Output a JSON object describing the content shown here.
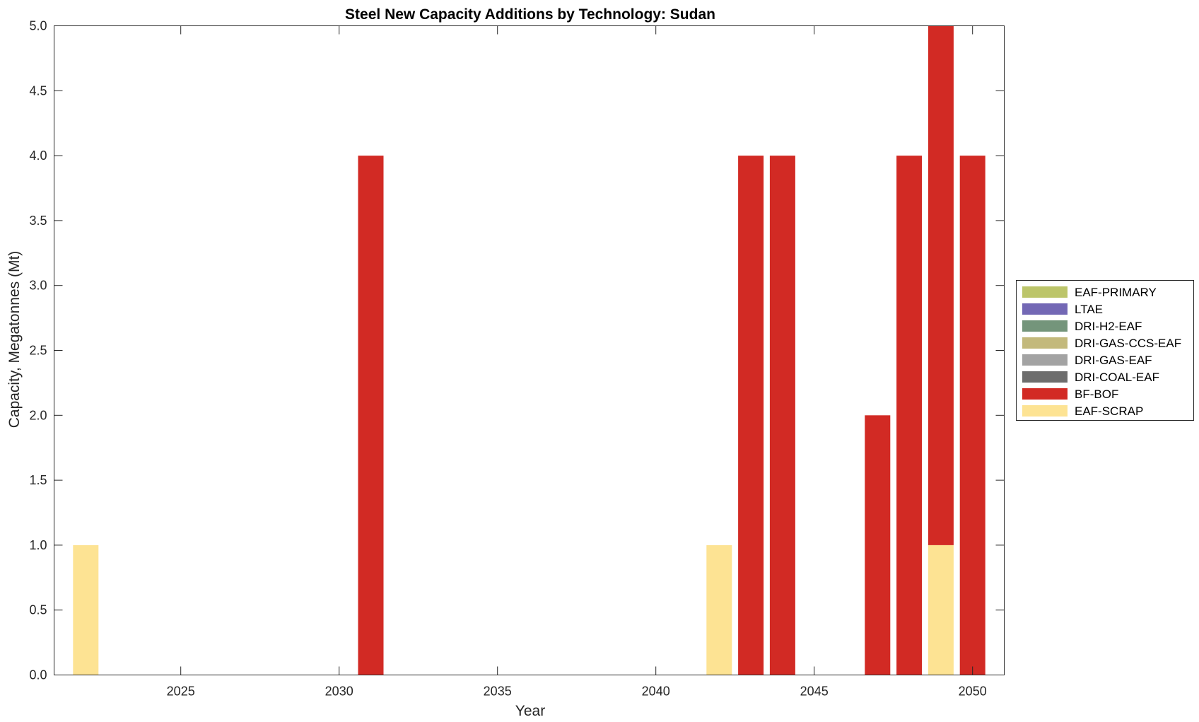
{
  "chart_data": {
    "type": "bar",
    "stacked": true,
    "title": "Steel New Capacity Additions by Technology: Sudan",
    "xlabel": "Year",
    "ylabel": "Capacity, Megatonnes (Mt)",
    "xlim": [
      2021,
      2051
    ],
    "ylim": [
      0,
      5
    ],
    "x_ticks": [
      2025,
      2030,
      2035,
      2040,
      2045,
      2050
    ],
    "y_ticks": [
      0.0,
      0.5,
      1.0,
      1.5,
      2.0,
      2.5,
      3.0,
      3.5,
      4.0,
      4.5,
      5.0
    ],
    "y_tick_labels": [
      "0.0",
      "0.5",
      "1.0",
      "1.5",
      "2.0",
      "2.5",
      "3.0",
      "3.5",
      "4.0",
      "4.5",
      "5.0"
    ],
    "grid": false,
    "legend_position": "right",
    "categories": [
      2022,
      2031,
      2042,
      2043,
      2044,
      2047,
      2048,
      2049,
      2050
    ],
    "series": [
      {
        "name": "EAF-SCRAP",
        "color": "#fde393",
        "values": [
          1,
          0,
          1,
          0,
          0,
          0,
          0,
          1,
          0
        ]
      },
      {
        "name": "BF-BOF",
        "color": "#d22a24",
        "values": [
          0,
          4,
          0,
          4,
          4,
          2,
          4,
          4,
          4
        ]
      },
      {
        "name": "DRI-COAL-EAF",
        "color": "#6d6d6d",
        "values": [
          0,
          0,
          0,
          0,
          0,
          0,
          0,
          0,
          0
        ]
      },
      {
        "name": "DRI-GAS-EAF",
        "color": "#a3a3a3",
        "values": [
          0,
          0,
          0,
          0,
          0,
          0,
          0,
          0,
          0
        ]
      },
      {
        "name": "DRI-GAS-CCS-EAF",
        "color": "#c3b97c",
        "values": [
          0,
          0,
          0,
          0,
          0,
          0,
          0,
          0,
          0
        ]
      },
      {
        "name": "DRI-H2-EAF",
        "color": "#74957b",
        "values": [
          0,
          0,
          0,
          0,
          0,
          0,
          0,
          0,
          0
        ]
      },
      {
        "name": "LTAE",
        "color": "#7368b5",
        "values": [
          0,
          0,
          0,
          0,
          0,
          0,
          0,
          0,
          0
        ]
      },
      {
        "name": "EAF-PRIMARY",
        "color": "#bcc56a",
        "values": [
          0,
          0,
          0,
          0,
          0,
          0,
          0,
          0,
          0
        ]
      }
    ],
    "legend_order": [
      "EAF-PRIMARY",
      "LTAE",
      "DRI-H2-EAF",
      "DRI-GAS-CCS-EAF",
      "DRI-GAS-EAF",
      "DRI-COAL-EAF",
      "BF-BOF",
      "EAF-SCRAP"
    ]
  }
}
